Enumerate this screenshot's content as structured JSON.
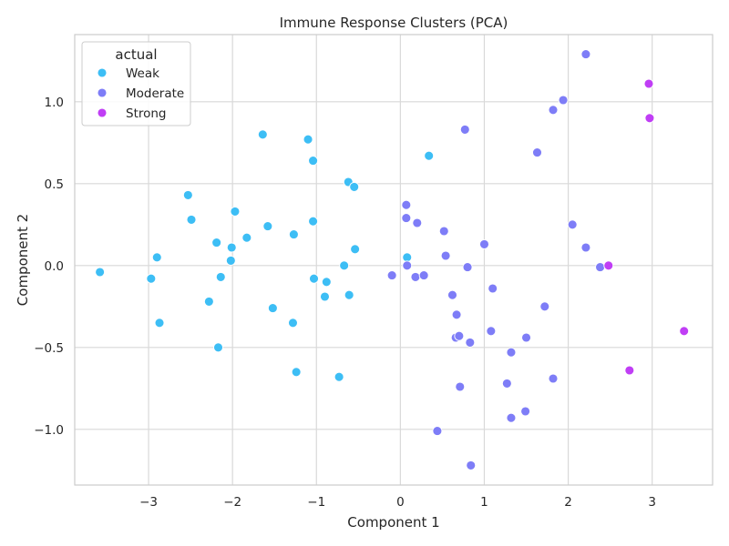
{
  "chart_data": {
    "type": "scatter",
    "title": "Immune Response Clusters (PCA)",
    "xlabel": "Component 1",
    "ylabel": "Component 2",
    "xlim": [
      -3.88,
      3.72
    ],
    "ylim": [
      -1.34,
      1.41
    ],
    "xticks": [
      -3,
      -2,
      -1,
      0,
      1,
      2,
      3
    ],
    "xtick_labels": [
      "−3",
      "−2",
      "−1",
      "0",
      "1",
      "2",
      "3"
    ],
    "yticks": [
      -1.0,
      -0.5,
      0.0,
      0.5,
      1.0
    ],
    "ytick_labels": [
      "−1.0",
      "−0.5",
      "0.0",
      "0.5",
      "1.0"
    ],
    "grid": true,
    "legend": {
      "title": "actual",
      "position": "top-left"
    },
    "series": [
      {
        "name": "Weak",
        "color": "#3dbef5",
        "points": [
          [
            -3.58,
            -0.04
          ],
          [
            -2.97,
            -0.08
          ],
          [
            -2.9,
            0.05
          ],
          [
            -2.87,
            -0.35
          ],
          [
            -2.53,
            0.43
          ],
          [
            -2.49,
            0.28
          ],
          [
            -2.28,
            -0.22
          ],
          [
            -2.19,
            0.14
          ],
          [
            -2.17,
            -0.5
          ],
          [
            -2.14,
            -0.07
          ],
          [
            -2.02,
            0.03
          ],
          [
            -2.01,
            0.11
          ],
          [
            -1.97,
            0.33
          ],
          [
            -1.83,
            0.17
          ],
          [
            -1.64,
            0.8
          ],
          [
            -1.58,
            0.24
          ],
          [
            -1.52,
            -0.26
          ],
          [
            -1.28,
            -0.35
          ],
          [
            -1.27,
            0.19
          ],
          [
            -1.24,
            -0.65
          ],
          [
            -1.1,
            0.77
          ],
          [
            -1.04,
            0.64
          ],
          [
            -1.04,
            0.27
          ],
          [
            -1.03,
            -0.08
          ],
          [
            -0.9,
            -0.19
          ],
          [
            -0.88,
            -0.1
          ],
          [
            -0.73,
            -0.68
          ],
          [
            -0.67,
            0.0
          ],
          [
            -0.62,
            0.51
          ],
          [
            -0.61,
            -0.18
          ],
          [
            -0.55,
            0.48
          ],
          [
            -0.54,
            0.1
          ],
          [
            0.08,
            0.05
          ],
          [
            0.34,
            0.67
          ]
        ]
      },
      {
        "name": "Moderate",
        "color": "#7e7df7",
        "points": [
          [
            -0.1,
            -0.06
          ],
          [
            0.07,
            0.29
          ],
          [
            0.07,
            0.37
          ],
          [
            0.08,
            0.0
          ],
          [
            0.18,
            -0.07
          ],
          [
            0.2,
            0.26
          ],
          [
            0.28,
            -0.06
          ],
          [
            0.44,
            -1.01
          ],
          [
            0.52,
            0.21
          ],
          [
            0.54,
            0.06
          ],
          [
            0.62,
            -0.18
          ],
          [
            0.66,
            -0.44
          ],
          [
            0.67,
            -0.3
          ],
          [
            0.7,
            -0.43
          ],
          [
            0.71,
            -0.74
          ],
          [
            0.77,
            0.83
          ],
          [
            0.8,
            -0.01
          ],
          [
            0.83,
            -0.47
          ],
          [
            0.84,
            -1.22
          ],
          [
            1.0,
            0.13
          ],
          [
            1.08,
            -0.4
          ],
          [
            1.1,
            -0.14
          ],
          [
            1.27,
            -0.72
          ],
          [
            1.32,
            -0.53
          ],
          [
            1.32,
            -0.93
          ],
          [
            1.49,
            -0.89
          ],
          [
            1.5,
            -0.44
          ],
          [
            1.63,
            0.69
          ],
          [
            1.72,
            -0.25
          ],
          [
            1.82,
            0.95
          ],
          [
            1.82,
            -0.69
          ],
          [
            1.94,
            1.01
          ],
          [
            2.05,
            0.25
          ],
          [
            2.21,
            1.29
          ],
          [
            2.21,
            0.11
          ],
          [
            2.38,
            -0.01
          ]
        ]
      },
      {
        "name": "Strong",
        "color": "#c03ef5",
        "points": [
          [
            2.48,
            0.0
          ],
          [
            2.73,
            -0.64
          ],
          [
            2.96,
            1.11
          ],
          [
            2.97,
            0.9
          ],
          [
            3.38,
            -0.4
          ]
        ]
      }
    ]
  }
}
